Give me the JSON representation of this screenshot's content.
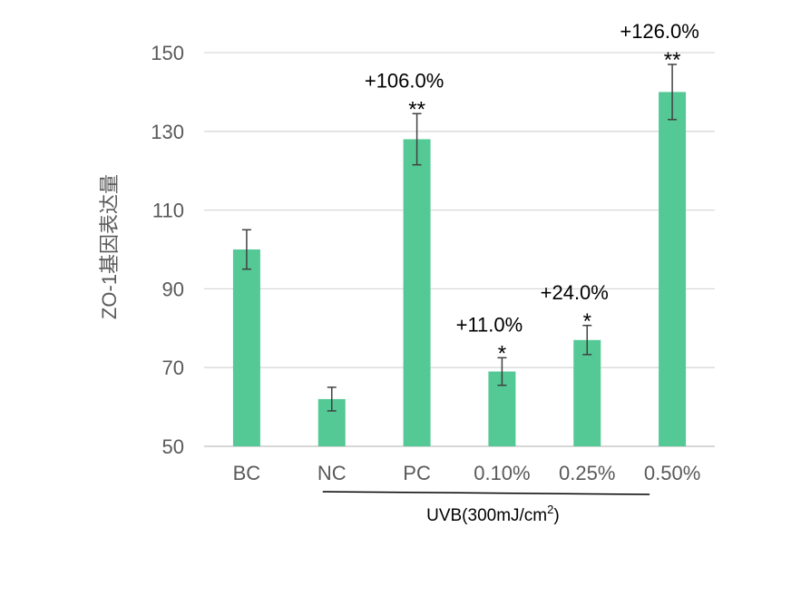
{
  "chart_data": {
    "type": "bar",
    "title": "",
    "ylabel": "ZO-1基因表达量",
    "xlabel": "",
    "ylim": [
      50,
      150
    ],
    "yticks": [
      50,
      70,
      90,
      110,
      130,
      150
    ],
    "grid": true,
    "legend": "none",
    "bar_color": "#54C995",
    "categories": [
      "BC",
      "NC",
      "PC",
      "0.10%",
      "0.25%",
      "0.50%"
    ],
    "values": [
      100,
      62,
      128,
      69,
      77,
      140
    ],
    "errors": [
      5,
      3,
      6.5,
      3.5,
      3.7,
      7
    ],
    "significance": [
      "",
      "",
      "**",
      "*",
      "*",
      "**"
    ],
    "annotations": [
      "",
      "",
      "+106.0%",
      "+11.0%",
      "+24.0%",
      "+126.0%"
    ],
    "group_label": {
      "text": "UVB(300mJ/cm",
      "superscript": "2",
      "suffix": ")",
      "from_category": "NC",
      "to_category": "0.50%"
    }
  }
}
